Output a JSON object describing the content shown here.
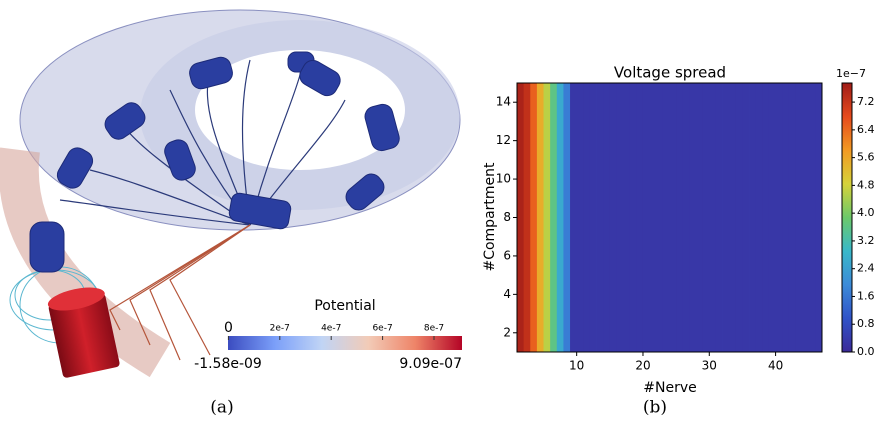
{
  "panel_a": {
    "caption": "(a)",
    "colorbar": {
      "title": "Potential",
      "lim": [
        {
          "value": -1.58e-09,
          "label": "-1.58e-09"
        },
        {
          "value": 9.09e-07,
          "label": "9.09e-07"
        }
      ],
      "ticks": [
        {
          "value": 0,
          "label": "0"
        },
        {
          "value": 2e-07,
          "label": "2e-7"
        },
        {
          "value": 4e-07,
          "label": "4e-7"
        },
        {
          "value": 6e-07,
          "label": "6e-7"
        },
        {
          "value": 8e-07,
          "label": "8e-7"
        }
      ],
      "colorscale": [
        "#3b4cc0",
        "#7b9ff9",
        "#c0d4f5",
        "#f2cbb7",
        "#ee8468",
        "#b40426"
      ]
    }
  },
  "panel_b": {
    "caption": "(b)"
  },
  "chart_data": {
    "type": "heatmap",
    "title": "Voltage spread",
    "x_label": "#Nerve",
    "y_label": "#Compartment",
    "x": [
      1,
      2,
      3,
      4,
      5,
      6,
      7,
      8,
      9,
      10,
      11,
      12,
      13,
      14,
      15,
      16,
      17,
      18,
      19,
      20,
      21,
      22,
      23,
      24,
      25,
      26,
      27,
      28,
      29,
      30,
      31,
      32,
      33,
      34,
      35,
      36,
      37,
      38,
      39,
      40,
      41,
      42,
      43,
      44,
      45,
      46
    ],
    "values": [
      7.6,
      7.3,
      6.5,
      5.5,
      4.6,
      3.6,
      2.6,
      1.7,
      0.3,
      0.3,
      0.3,
      0.3,
      0.3,
      0.3,
      0.3,
      0.3,
      0.3,
      0.3,
      0.3,
      0.3,
      0.3,
      0.3,
      0.3,
      0.3,
      0.3,
      0.3,
      0.3,
      0.3,
      0.3,
      0.3,
      0.3,
      0.3,
      0.3,
      0.3,
      0.3,
      0.3,
      0.3,
      0.3,
      0.3,
      0.3,
      0.3,
      0.3,
      0.3,
      0.3,
      0.3,
      0.3
    ],
    "xlim": [
      1,
      47
    ],
    "xticks": [
      10,
      20,
      30,
      40
    ],
    "ylim": [
      1,
      15
    ],
    "yticks": [
      2,
      4,
      6,
      8,
      10,
      12,
      14
    ],
    "colorbar": {
      "lim": [
        0,
        7.75
      ],
      "offset_label": "1e−7",
      "ticks": [
        {
          "value": 0,
          "label": "0.0"
        },
        0.8,
        1.6,
        2.4,
        3.2,
        {
          "value": 4,
          "label": "4.0"
        },
        4.8,
        5.6,
        6.4,
        7.2
      ]
    },
    "colorscale": [
      "#3b2a98",
      "#3053c8",
      "#3c8bd8",
      "#39b8c9",
      "#6cc96a",
      "#d6d23a",
      "#f29a23",
      "#e64a1c",
      "#a01c18"
    ]
  }
}
